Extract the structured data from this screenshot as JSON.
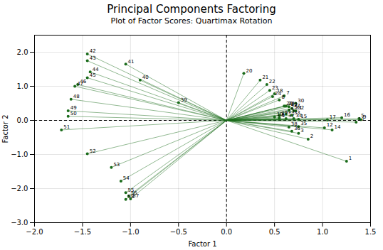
{
  "chart_data": {
    "type": "scatter",
    "title": "Principal Components Factoring",
    "subtitle": "Plot of Factor Scores: Quartimax Rotation",
    "xlabel": "Factor 1",
    "ylabel": "Factor 2",
    "xlim": [
      -2,
      1.5
    ],
    "ylim": [
      -3,
      2.5
    ],
    "xticks": [
      -2,
      -1.5,
      -1,
      -0.5,
      0,
      0.5,
      1,
      1.5
    ],
    "yticks": [
      -3,
      -2,
      -1,
      0,
      1,
      2
    ],
    "grid": true,
    "color": "#1a6b1a",
    "labels": [
      "1",
      "2",
      "3",
      "4",
      "5",
      "6",
      "7",
      "8",
      "9",
      "10",
      "11",
      "12",
      "13",
      "14",
      "15",
      "16",
      "17",
      "18",
      "19",
      "20",
      "21",
      "22",
      "23",
      "24",
      "25",
      "26",
      "27",
      "28",
      "29",
      "30",
      "31",
      "32",
      "33",
      "34",
      "35",
      "36",
      "37",
      "38",
      "39",
      "40",
      "41",
      "42",
      "43",
      "44",
      "45",
      "46",
      "47",
      "48",
      "49",
      "50",
      "51",
      "52",
      "53",
      "54",
      "55",
      "56",
      "57",
      "58"
    ],
    "x": [
      1.25,
      0.85,
      0.75,
      0.55,
      1.38,
      0.55,
      0.6,
      0.55,
      1.4,
      0.5,
      1.35,
      1.02,
      0.62,
      1.1,
      0.75,
      1.2,
      1.05,
      0.5,
      0.55,
      0.18,
      0.35,
      0.42,
      0.45,
      0.48,
      0.65,
      0.6,
      0.68,
      0.62,
      0.65,
      0.72,
      0.7,
      0.72,
      0.68,
      0.7,
      0.75,
      0.68,
      0.62,
      0.65,
      -0.5,
      -0.9,
      -1.05,
      -1.45,
      -1.45,
      -1.42,
      -1.45,
      -1.55,
      -1.58,
      -1.62,
      -1.65,
      -1.65,
      -1.72,
      -1.45,
      -1.2,
      -1.1,
      -1.05,
      -1.02,
      -1.0,
      -1.05
    ],
    "values": [
      -1.2,
      -0.55,
      -0.38,
      0.05,
      0.05,
      0.08,
      0.72,
      0.6,
      0.02,
      0.1,
      -0.05,
      -0.22,
      0.18,
      -0.28,
      0.03,
      0.08,
      0.02,
      0.78,
      0.15,
      1.38,
      1.18,
      1.05,
      0.88,
      0.7,
      0.3,
      0.42,
      0.35,
      0.42,
      0.4,
      0.5,
      0.28,
      0.28,
      0.15,
      0.05,
      -0.18,
      -0.32,
      0.05,
      -0.2,
      0.52,
      1.18,
      1.65,
      1.95,
      1.75,
      1.42,
      1.25,
      1.05,
      1.0,
      0.62,
      0.28,
      0.12,
      -0.28,
      -0.98,
      -1.38,
      -1.78,
      -2.12,
      -2.22,
      -2.3,
      -2.32
    ]
  }
}
